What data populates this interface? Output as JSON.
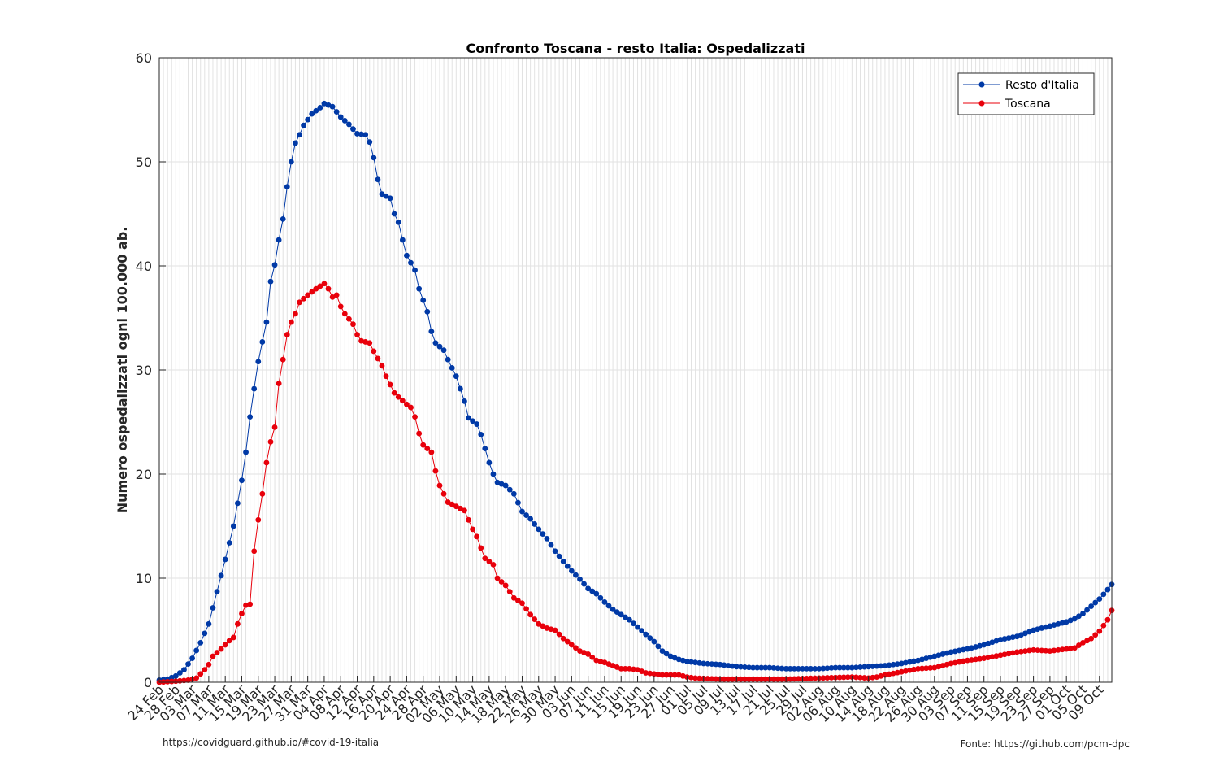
{
  "chart_data": {
    "type": "line",
    "title": "Confronto Toscana - resto Italia: Ospedalizzati",
    "xlabel": "",
    "ylabel": "Numero ospedalizzati ogni 100.000 ab.",
    "ylim": [
      0,
      60
    ],
    "yticks": [
      0,
      10,
      20,
      30,
      40,
      50,
      60
    ],
    "grid": true,
    "legend_position": "top-right",
    "x_start": "2020-02-24",
    "x_end": "2020-10-12",
    "x_ticks": [
      "24 Feb",
      "28 Feb",
      "03 Mar",
      "07 Mar",
      "11 Mar",
      "15 Mar",
      "19 Mar",
      "23 Mar",
      "27 Mar",
      "31 Mar",
      "04 Apr",
      "08 Apr",
      "12 Apr",
      "16 Apr",
      "20 Apr",
      "24 Apr",
      "28 Apr",
      "02 May",
      "06 May",
      "10 May",
      "14 May",
      "18 May",
      "22 May",
      "26 May",
      "30 May",
      "03 Jun",
      "07 Jun",
      "11 Jun",
      "15 Jun",
      "19 Jun",
      "23 Jun",
      "27 Jun",
      "01 Jul",
      "05 Jul",
      "09 Jul",
      "13 Jul",
      "17 Jul",
      "21 Jul",
      "25 Jul",
      "29 Jul",
      "02 Aug",
      "06 Aug",
      "10 Aug",
      "14 Aug",
      "18 Aug",
      "22 Aug",
      "26 Aug",
      "30 Aug",
      "03 Sep",
      "07 Sep",
      "11 Sep",
      "15 Sep",
      "19 Sep",
      "23 Sep",
      "27 Sep",
      "01 Oct",
      "05 Oct",
      "09 Oct"
    ],
    "series": [
      {
        "name": "Resto d'Italia",
        "color": "#0039a6",
        "points": [
          [
            "2020-02-24",
            0.2
          ],
          [
            "2020-02-26",
            0.3
          ],
          [
            "2020-02-28",
            0.6
          ],
          [
            "2020-03-01",
            1.2
          ],
          [
            "2020-03-03",
            2.3
          ],
          [
            "2020-03-05",
            3.8
          ],
          [
            "2020-03-07",
            5.6
          ],
          [
            "2020-03-09",
            8.7
          ],
          [
            "2020-03-11",
            11.8
          ],
          [
            "2020-03-13",
            15.0
          ],
          [
            "2020-03-15",
            19.4
          ],
          [
            "2020-03-16",
            22.1
          ],
          [
            "2020-03-17",
            25.5
          ],
          [
            "2020-03-18",
            28.2
          ],
          [
            "2020-03-19",
            30.8
          ],
          [
            "2020-03-21",
            34.6
          ],
          [
            "2020-03-22",
            38.5
          ],
          [
            "2020-03-23",
            40.1
          ],
          [
            "2020-03-24",
            42.5
          ],
          [
            "2020-03-25",
            44.5
          ],
          [
            "2020-03-26",
            47.6
          ],
          [
            "2020-03-27",
            50.0
          ],
          [
            "2020-03-28",
            51.8
          ],
          [
            "2020-03-29",
            52.6
          ],
          [
            "2020-03-30",
            53.5
          ],
          [
            "2020-04-01",
            54.6
          ],
          [
            "2020-04-03",
            55.2
          ],
          [
            "2020-04-04",
            55.6
          ],
          [
            "2020-04-06",
            55.3
          ],
          [
            "2020-04-08",
            54.3
          ],
          [
            "2020-04-10",
            53.6
          ],
          [
            "2020-04-12",
            52.7
          ],
          [
            "2020-04-14",
            52.6
          ],
          [
            "2020-04-15",
            51.9
          ],
          [
            "2020-04-16",
            50.4
          ],
          [
            "2020-04-17",
            48.3
          ],
          [
            "2020-04-18",
            46.9
          ],
          [
            "2020-04-20",
            46.5
          ],
          [
            "2020-04-21",
            45.0
          ],
          [
            "2020-04-22",
            44.2
          ],
          [
            "2020-04-23",
            42.5
          ],
          [
            "2020-04-24",
            41.0
          ],
          [
            "2020-04-26",
            39.6
          ],
          [
            "2020-04-27",
            37.8
          ],
          [
            "2020-04-28",
            36.7
          ],
          [
            "2020-04-29",
            35.6
          ],
          [
            "2020-04-30",
            33.7
          ],
          [
            "2020-05-01",
            32.6
          ],
          [
            "2020-05-03",
            31.9
          ],
          [
            "2020-05-04",
            31.0
          ],
          [
            "2020-05-06",
            29.4
          ],
          [
            "2020-05-08",
            27.0
          ],
          [
            "2020-05-09",
            25.4
          ],
          [
            "2020-05-11",
            24.8
          ],
          [
            "2020-05-12",
            23.8
          ],
          [
            "2020-05-14",
            21.1
          ],
          [
            "2020-05-15",
            20.0
          ],
          [
            "2020-05-16",
            19.2
          ],
          [
            "2020-05-18",
            18.9
          ],
          [
            "2020-05-20",
            18.1
          ],
          [
            "2020-05-22",
            16.4
          ],
          [
            "2020-05-24",
            15.7
          ],
          [
            "2020-05-26",
            14.7
          ],
          [
            "2020-05-28",
            13.8
          ],
          [
            "2020-05-30",
            12.6
          ],
          [
            "2020-06-01",
            11.6
          ],
          [
            "2020-06-03",
            10.7
          ],
          [
            "2020-06-05",
            9.9
          ],
          [
            "2020-06-07",
            9.0
          ],
          [
            "2020-06-09",
            8.5
          ],
          [
            "2020-06-11",
            7.7
          ],
          [
            "2020-06-13",
            7.0
          ],
          [
            "2020-06-15",
            6.5
          ],
          [
            "2020-06-17",
            6.0
          ],
          [
            "2020-06-19",
            5.3
          ],
          [
            "2020-06-21",
            4.6
          ],
          [
            "2020-06-23",
            3.9
          ],
          [
            "2020-06-25",
            3.0
          ],
          [
            "2020-06-27",
            2.5
          ],
          [
            "2020-06-29",
            2.2
          ],
          [
            "2020-07-01",
            2.0
          ],
          [
            "2020-07-05",
            1.8
          ],
          [
            "2020-07-09",
            1.7
          ],
          [
            "2020-07-13",
            1.5
          ],
          [
            "2020-07-17",
            1.4
          ],
          [
            "2020-07-21",
            1.4
          ],
          [
            "2020-07-25",
            1.3
          ],
          [
            "2020-07-29",
            1.3
          ],
          [
            "2020-08-02",
            1.3
          ],
          [
            "2020-08-06",
            1.4
          ],
          [
            "2020-08-10",
            1.4
          ],
          [
            "2020-08-14",
            1.5
          ],
          [
            "2020-08-18",
            1.6
          ],
          [
            "2020-08-22",
            1.8
          ],
          [
            "2020-08-26",
            2.1
          ],
          [
            "2020-08-30",
            2.5
          ],
          [
            "2020-09-03",
            2.9
          ],
          [
            "2020-09-07",
            3.2
          ],
          [
            "2020-09-11",
            3.6
          ],
          [
            "2020-09-15",
            4.1
          ],
          [
            "2020-09-19",
            4.4
          ],
          [
            "2020-09-23",
            5.0
          ],
          [
            "2020-09-27",
            5.4
          ],
          [
            "2020-10-01",
            5.8
          ],
          [
            "2020-10-03",
            6.1
          ],
          [
            "2020-10-05",
            6.6
          ],
          [
            "2020-10-07",
            7.3
          ],
          [
            "2020-10-09",
            8.0
          ],
          [
            "2020-10-11",
            8.9
          ],
          [
            "2020-10-12",
            9.4
          ]
        ]
      },
      {
        "name": "Toscana",
        "color": "#e8000b",
        "points": [
          [
            "2020-02-24",
            0.0
          ],
          [
            "2020-02-28",
            0.1
          ],
          [
            "2020-03-02",
            0.2
          ],
          [
            "2020-03-04",
            0.4
          ],
          [
            "2020-03-05",
            0.8
          ],
          [
            "2020-03-06",
            1.2
          ],
          [
            "2020-03-07",
            1.7
          ],
          [
            "2020-03-08",
            2.5
          ],
          [
            "2020-03-10",
            3.2
          ],
          [
            "2020-03-12",
            4.0
          ],
          [
            "2020-03-13",
            4.3
          ],
          [
            "2020-03-14",
            5.6
          ],
          [
            "2020-03-15",
            6.6
          ],
          [
            "2020-03-16",
            7.4
          ],
          [
            "2020-03-17",
            7.5
          ],
          [
            "2020-03-18",
            12.6
          ],
          [
            "2020-03-19",
            15.6
          ],
          [
            "2020-03-20",
            18.1
          ],
          [
            "2020-03-21",
            21.1
          ],
          [
            "2020-03-22",
            23.1
          ],
          [
            "2020-03-23",
            24.5
          ],
          [
            "2020-03-24",
            28.7
          ],
          [
            "2020-03-25",
            31.0
          ],
          [
            "2020-03-26",
            33.4
          ],
          [
            "2020-03-27",
            34.6
          ],
          [
            "2020-03-28",
            35.4
          ],
          [
            "2020-03-29",
            36.5
          ],
          [
            "2020-03-31",
            37.2
          ],
          [
            "2020-04-02",
            37.8
          ],
          [
            "2020-04-04",
            38.3
          ],
          [
            "2020-04-05",
            37.8
          ],
          [
            "2020-04-06",
            37.0
          ],
          [
            "2020-04-07",
            37.2
          ],
          [
            "2020-04-08",
            36.1
          ],
          [
            "2020-04-09",
            35.4
          ],
          [
            "2020-04-11",
            34.4
          ],
          [
            "2020-04-12",
            33.4
          ],
          [
            "2020-04-13",
            32.8
          ],
          [
            "2020-04-15",
            32.6
          ],
          [
            "2020-04-16",
            31.8
          ],
          [
            "2020-04-18",
            30.4
          ],
          [
            "2020-04-19",
            29.4
          ],
          [
            "2020-04-20",
            28.6
          ],
          [
            "2020-04-21",
            27.8
          ],
          [
            "2020-04-22",
            27.4
          ],
          [
            "2020-04-24",
            26.7
          ],
          [
            "2020-04-25",
            26.4
          ],
          [
            "2020-04-26",
            25.5
          ],
          [
            "2020-04-27",
            23.9
          ],
          [
            "2020-04-28",
            22.8
          ],
          [
            "2020-04-30",
            22.1
          ],
          [
            "2020-05-01",
            20.3
          ],
          [
            "2020-05-02",
            18.9
          ],
          [
            "2020-05-04",
            17.3
          ],
          [
            "2020-05-06",
            16.9
          ],
          [
            "2020-05-08",
            16.5
          ],
          [
            "2020-05-09",
            15.6
          ],
          [
            "2020-05-10",
            14.7
          ],
          [
            "2020-05-11",
            14.0
          ],
          [
            "2020-05-12",
            12.9
          ],
          [
            "2020-05-13",
            11.9
          ],
          [
            "2020-05-15",
            11.3
          ],
          [
            "2020-05-16",
            10.0
          ],
          [
            "2020-05-18",
            9.3
          ],
          [
            "2020-05-20",
            8.1
          ],
          [
            "2020-05-22",
            7.6
          ],
          [
            "2020-05-24",
            6.5
          ],
          [
            "2020-05-26",
            5.6
          ],
          [
            "2020-05-28",
            5.2
          ],
          [
            "2020-05-30",
            5.0
          ],
          [
            "2020-06-01",
            4.2
          ],
          [
            "2020-06-03",
            3.6
          ],
          [
            "2020-06-05",
            3.0
          ],
          [
            "2020-06-07",
            2.7
          ],
          [
            "2020-06-09",
            2.1
          ],
          [
            "2020-06-11",
            1.9
          ],
          [
            "2020-06-13",
            1.6
          ],
          [
            "2020-06-15",
            1.3
          ],
          [
            "2020-06-17",
            1.3
          ],
          [
            "2020-06-19",
            1.2
          ],
          [
            "2020-06-21",
            0.9
          ],
          [
            "2020-06-25",
            0.7
          ],
          [
            "2020-06-29",
            0.7
          ],
          [
            "2020-07-01",
            0.5
          ],
          [
            "2020-07-03",
            0.4
          ],
          [
            "2020-07-09",
            0.3
          ],
          [
            "2020-07-17",
            0.3
          ],
          [
            "2020-07-25",
            0.3
          ],
          [
            "2020-08-02",
            0.4
          ],
          [
            "2020-08-10",
            0.5
          ],
          [
            "2020-08-14",
            0.4
          ],
          [
            "2020-08-16",
            0.5
          ],
          [
            "2020-08-18",
            0.7
          ],
          [
            "2020-08-22",
            1.0
          ],
          [
            "2020-08-26",
            1.3
          ],
          [
            "2020-08-30",
            1.4
          ],
          [
            "2020-09-03",
            1.8
          ],
          [
            "2020-09-07",
            2.1
          ],
          [
            "2020-09-11",
            2.3
          ],
          [
            "2020-09-15",
            2.6
          ],
          [
            "2020-09-19",
            2.9
          ],
          [
            "2020-09-23",
            3.1
          ],
          [
            "2020-09-27",
            3.0
          ],
          [
            "2020-10-01",
            3.2
          ],
          [
            "2020-10-03",
            3.3
          ],
          [
            "2020-10-05",
            3.8
          ],
          [
            "2020-10-07",
            4.2
          ],
          [
            "2020-10-09",
            4.9
          ],
          [
            "2020-10-11",
            6.0
          ],
          [
            "2020-10-12",
            6.9
          ]
        ]
      }
    ],
    "footnote_left": "https://covidguard.github.io/#covid-19-italia",
    "footnote_right": "Fonte: https://github.com/pcm-dpc"
  }
}
